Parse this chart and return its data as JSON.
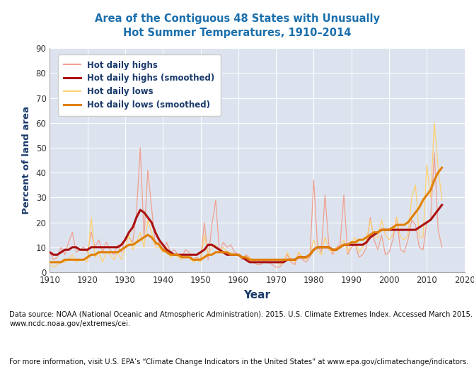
{
  "title": "Area of the Contiguous 48 States with Unusually\nHot Summer Temperatures, 1910–2014",
  "xlabel": "Year",
  "ylabel": "Percent of land area",
  "xlim": [
    1910,
    2020
  ],
  "ylim": [
    0,
    90
  ],
  "yticks": [
    0,
    10,
    20,
    30,
    40,
    50,
    60,
    70,
    80,
    90
  ],
  "xticks": [
    1910,
    1920,
    1930,
    1940,
    1950,
    1960,
    1970,
    1980,
    1990,
    2000,
    2010,
    2020
  ],
  "plot_bg_color": "#dde3ee",
  "title_color": "#1a6fad",
  "axis_label_color": "#1a3a6b",
  "legend_text_color": "#1a3a6b",
  "tick_label_color": "#333333",
  "footnote1": "Data source: NOAA (National Oceanic and Atmospheric Administration). 2015. U.S. Climate Extremes Index. Accessed March 2015.\nwww.ncdc.noaa.gov/extremes/cei.",
  "footnote2": "For more information, visit U.S. EPA’s “Climate Change Indicators in the United States” at www.epa.gov/climatechange/indicators.",
  "hot_highs_raw_years": [
    1910,
    1911,
    1912,
    1913,
    1914,
    1915,
    1916,
    1917,
    1918,
    1919,
    1920,
    1921,
    1922,
    1923,
    1924,
    1925,
    1926,
    1927,
    1928,
    1929,
    1930,
    1931,
    1932,
    1933,
    1934,
    1935,
    1936,
    1937,
    1938,
    1939,
    1940,
    1941,
    1942,
    1943,
    1944,
    1945,
    1946,
    1947,
    1948,
    1949,
    1950,
    1951,
    1952,
    1953,
    1954,
    1955,
    1956,
    1957,
    1958,
    1959,
    1960,
    1961,
    1962,
    1963,
    1964,
    1965,
    1966,
    1967,
    1968,
    1969,
    1970,
    1971,
    1972,
    1973,
    1974,
    1975,
    1976,
    1977,
    1978,
    1979,
    1980,
    1981,
    1982,
    1983,
    1984,
    1985,
    1986,
    1987,
    1988,
    1989,
    1990,
    1991,
    1992,
    1993,
    1994,
    1995,
    1996,
    1997,
    1998,
    1999,
    2000,
    2001,
    2002,
    2003,
    2004,
    2005,
    2006,
    2007,
    2008,
    2009,
    2010,
    2011,
    2012,
    2013,
    2014
  ],
  "hot_highs_raw_vals": [
    8,
    5,
    6,
    10,
    7,
    12,
    16,
    8,
    9,
    10,
    8,
    16,
    10,
    13,
    8,
    12,
    9,
    7,
    11,
    8,
    14,
    14,
    12,
    24,
    50,
    14,
    41,
    26,
    11,
    12,
    8,
    12,
    8,
    9,
    7,
    6,
    9,
    8,
    5,
    6,
    5,
    20,
    5,
    19,
    29,
    8,
    12,
    10,
    11,
    8,
    7,
    5,
    7,
    6,
    4,
    3,
    3,
    5,
    4,
    3,
    2,
    2,
    4,
    7,
    4,
    3,
    8,
    5,
    4,
    6,
    37,
    11,
    8,
    31,
    11,
    7,
    10,
    11,
    31,
    7,
    10,
    11,
    6,
    7,
    10,
    22,
    13,
    9,
    15,
    7,
    8,
    13,
    22,
    9,
    8,
    13,
    21,
    19,
    10,
    9,
    20,
    21,
    48,
    17,
    10
  ],
  "hot_highs_smooth_years": [
    1910,
    1911,
    1912,
    1913,
    1914,
    1915,
    1916,
    1917,
    1918,
    1919,
    1920,
    1921,
    1922,
    1923,
    1924,
    1925,
    1926,
    1927,
    1928,
    1929,
    1930,
    1931,
    1932,
    1933,
    1934,
    1935,
    1936,
    1937,
    1938,
    1939,
    1940,
    1941,
    1942,
    1943,
    1944,
    1945,
    1946,
    1947,
    1948,
    1949,
    1950,
    1951,
    1952,
    1953,
    1954,
    1955,
    1956,
    1957,
    1958,
    1959,
    1960,
    1961,
    1962,
    1963,
    1964,
    1965,
    1966,
    1967,
    1968,
    1969,
    1970,
    1971,
    1972,
    1973,
    1974,
    1975,
    1976,
    1977,
    1978,
    1979,
    1980,
    1981,
    1982,
    1983,
    1984,
    1985,
    1986,
    1987,
    1988,
    1989,
    1990,
    1991,
    1992,
    1993,
    1994,
    1995,
    1996,
    1997,
    1998,
    1999,
    2000,
    2001,
    2002,
    2003,
    2004,
    2005,
    2006,
    2007,
    2008,
    2009,
    2010,
    2011,
    2012,
    2013,
    2014
  ],
  "hot_highs_smooth_vals": [
    8,
    7,
    7,
    8,
    9,
    9,
    10,
    10,
    9,
    9,
    9,
    10,
    10,
    10,
    10,
    10,
    10,
    10,
    10,
    11,
    13,
    16,
    18,
    22,
    25,
    24,
    22,
    20,
    16,
    13,
    11,
    9,
    8,
    7,
    7,
    7,
    7,
    7,
    7,
    7,
    8,
    9,
    11,
    11,
    10,
    9,
    8,
    7,
    7,
    7,
    7,
    6,
    5,
    4,
    4,
    4,
    4,
    4,
    4,
    4,
    4,
    4,
    4,
    5,
    5,
    5,
    6,
    6,
    6,
    7,
    9,
    10,
    10,
    10,
    10,
    9,
    9,
    10,
    11,
    11,
    11,
    11,
    11,
    11,
    12,
    14,
    15,
    16,
    17,
    17,
    17,
    17,
    17,
    17,
    17,
    17,
    17,
    17,
    18,
    19,
    20,
    21,
    23,
    25,
    27
  ],
  "hot_lows_raw_years": [
    1910,
    1911,
    1912,
    1913,
    1914,
    1915,
    1916,
    1917,
    1918,
    1919,
    1920,
    1921,
    1922,
    1923,
    1924,
    1925,
    1926,
    1927,
    1928,
    1929,
    1930,
    1931,
    1932,
    1933,
    1934,
    1935,
    1936,
    1937,
    1938,
    1939,
    1940,
    1941,
    1942,
    1943,
    1944,
    1945,
    1946,
    1947,
    1948,
    1949,
    1950,
    1951,
    1952,
    1953,
    1954,
    1955,
    1956,
    1957,
    1958,
    1959,
    1960,
    1961,
    1962,
    1963,
    1964,
    1965,
    1966,
    1967,
    1968,
    1969,
    1970,
    1971,
    1972,
    1973,
    1974,
    1975,
    1976,
    1977,
    1978,
    1979,
    1980,
    1981,
    1982,
    1983,
    1984,
    1985,
    1986,
    1987,
    1988,
    1989,
    1990,
    1991,
    1992,
    1993,
    1994,
    1995,
    1996,
    1997,
    1998,
    1999,
    2000,
    2001,
    2002,
    2003,
    2004,
    2005,
    2006,
    2007,
    2008,
    2009,
    2010,
    2011,
    2012,
    2013,
    2014
  ],
  "hot_lows_raw_vals": [
    3,
    2,
    3,
    4,
    4,
    5,
    7,
    4,
    5,
    5,
    4,
    22,
    6,
    8,
    4,
    8,
    7,
    5,
    8,
    5,
    10,
    15,
    9,
    12,
    16,
    10,
    21,
    16,
    10,
    10,
    8,
    10,
    6,
    7,
    6,
    5,
    7,
    6,
    4,
    5,
    4,
    15,
    7,
    10,
    11,
    8,
    10,
    8,
    8,
    7,
    7,
    6,
    5,
    6,
    4,
    4,
    4,
    4,
    4,
    4,
    4,
    3,
    4,
    8,
    5,
    4,
    8,
    6,
    5,
    7,
    13,
    9,
    7,
    14,
    9,
    8,
    10,
    10,
    13,
    8,
    12,
    14,
    8,
    10,
    13,
    21,
    14,
    14,
    21,
    15,
    13,
    15,
    22,
    14,
    13,
    15,
    30,
    35,
    14,
    14,
    43,
    30,
    60,
    42,
    29
  ],
  "hot_lows_smooth_years": [
    1910,
    1911,
    1912,
    1913,
    1914,
    1915,
    1916,
    1917,
    1918,
    1919,
    1920,
    1921,
    1922,
    1923,
    1924,
    1925,
    1926,
    1927,
    1928,
    1929,
    1930,
    1931,
    1932,
    1933,
    1934,
    1935,
    1936,
    1937,
    1938,
    1939,
    1940,
    1941,
    1942,
    1943,
    1944,
    1945,
    1946,
    1947,
    1948,
    1949,
    1950,
    1951,
    1952,
    1953,
    1954,
    1955,
    1956,
    1957,
    1958,
    1959,
    1960,
    1961,
    1962,
    1963,
    1964,
    1965,
    1966,
    1967,
    1968,
    1969,
    1970,
    1971,
    1972,
    1973,
    1974,
    1975,
    1976,
    1977,
    1978,
    1979,
    1980,
    1981,
    1982,
    1983,
    1984,
    1985,
    1986,
    1987,
    1988,
    1989,
    1990,
    1991,
    1992,
    1993,
    1994,
    1995,
    1996,
    1997,
    1998,
    1999,
    2000,
    2001,
    2002,
    2003,
    2004,
    2005,
    2006,
    2007,
    2008,
    2009,
    2010,
    2011,
    2012,
    2013,
    2014
  ],
  "hot_lows_smooth_vals": [
    4,
    4,
    4,
    4,
    5,
    5,
    5,
    5,
    5,
    5,
    6,
    7,
    7,
    8,
    8,
    8,
    8,
    8,
    8,
    9,
    10,
    11,
    11,
    12,
    13,
    14,
    15,
    14,
    12,
    11,
    9,
    8,
    7,
    7,
    7,
    6,
    6,
    6,
    5,
    5,
    5,
    6,
    7,
    7,
    8,
    8,
    8,
    8,
    7,
    7,
    7,
    6,
    6,
    5,
    5,
    5,
    5,
    5,
    5,
    5,
    5,
    5,
    5,
    5,
    5,
    5,
    6,
    6,
    6,
    7,
    9,
    10,
    10,
    10,
    10,
    9,
    9,
    10,
    11,
    11,
    12,
    12,
    13,
    13,
    14,
    15,
    16,
    16,
    17,
    17,
    17,
    18,
    19,
    19,
    19,
    20,
    22,
    24,
    26,
    29,
    31,
    33,
    37,
    40,
    42
  ],
  "color_highs_raw": "#f0a090",
  "color_highs_smooth": "#aa1111",
  "color_lows_raw": "#ffd070",
  "color_lows_smooth": "#e08000",
  "lw_raw": 0.9,
  "lw_smooth": 2.2
}
